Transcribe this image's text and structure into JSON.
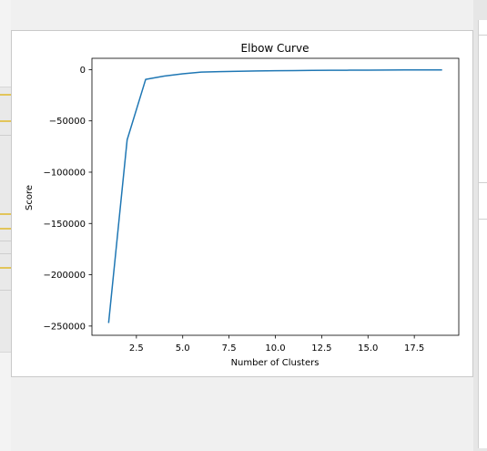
{
  "chart_data": {
    "type": "line",
    "title": "Elbow Curve",
    "xlabel": "Number of Clusters",
    "ylabel": "Score",
    "xlim": [
      0.1,
      19.9
    ],
    "ylim": [
      -259000,
      11000
    ],
    "x_ticks": [
      2.5,
      5.0,
      7.5,
      10.0,
      12.5,
      15.0,
      17.5
    ],
    "x_tick_labels": [
      "2.5",
      "5.0",
      "7.5",
      "10.0",
      "12.5",
      "15.0",
      "17.5"
    ],
    "y_ticks": [
      0,
      -50000,
      -100000,
      -150000,
      -200000,
      -250000
    ],
    "y_tick_labels": [
      "0",
      "−50000",
      "−100000",
      "−150000",
      "−200000",
      "−250000"
    ],
    "grid": false,
    "series": [
      {
        "color": "#1f77b4",
        "x": [
          1,
          2,
          3,
          4,
          5,
          6,
          7,
          8,
          9,
          10,
          11,
          12,
          13,
          14,
          15,
          16,
          17,
          18,
          19
        ],
        "y": [
          -247000,
          -68500,
          -9500,
          -6300,
          -4100,
          -2400,
          -2000,
          -1600,
          -1300,
          -1100,
          -950,
          -820,
          -700,
          -600,
          -520,
          -450,
          -380,
          -320,
          -270
        ]
      }
    ]
  }
}
